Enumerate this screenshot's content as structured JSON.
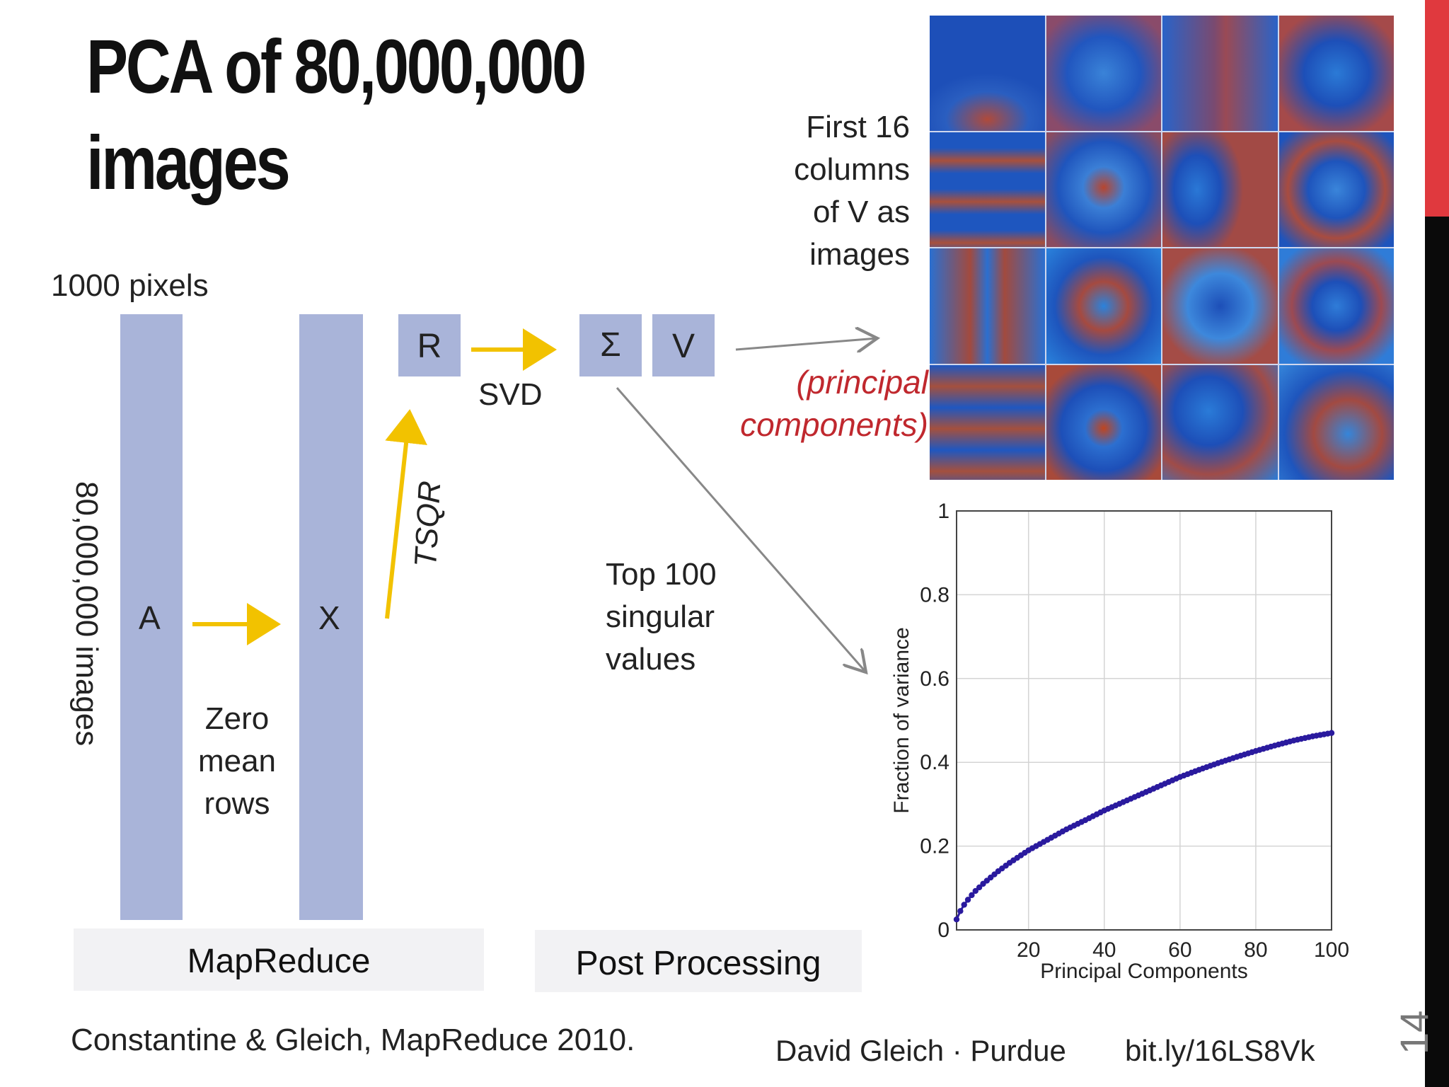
{
  "title": {
    "line1": "PCA of 80,000,000",
    "line2": "images"
  },
  "labels": {
    "pixels": "1000 pixels",
    "images_count": "80,000,000 images",
    "matrix_a": "A",
    "matrix_x": "X",
    "matrix_r": "R",
    "sigma": "Σ",
    "matrix_v": "V",
    "zero_mean_rows": [
      "Zero",
      "mean",
      "rows"
    ],
    "tsqr": "TSQR",
    "svd": "SVD",
    "top_singular": [
      "Top 100",
      "singular",
      "values"
    ],
    "first16": [
      "First 16",
      "columns",
      "of V as",
      "images"
    ],
    "principal_components": [
      "(principal",
      "components)"
    ]
  },
  "bands": {
    "mapreduce": "MapReduce",
    "post_processing": "Post Processing"
  },
  "footer": {
    "citation": "Constantine & Gleich, MapReduce 2010.",
    "author": "David Gleich · Purdue",
    "link": "bit.ly/16LS8Vk",
    "page": "14"
  },
  "colors": {
    "bar": "#a9b4d9",
    "arrow": "#f2c200",
    "accent": "#c0282e",
    "curve": "#2a1a9e"
  },
  "eigen_images": {
    "count": 16,
    "rows": 4,
    "cols": 4
  },
  "chart_data": {
    "type": "line",
    "title": "",
    "xlabel": "Principal Components",
    "ylabel": "Fraction of variance",
    "xlim": [
      1,
      100
    ],
    "ylim": [
      0,
      1
    ],
    "xticks": [
      20,
      40,
      60,
      80,
      100
    ],
    "yticks": [
      0,
      0.2,
      0.4,
      0.6,
      0.8,
      1
    ],
    "ytick_labels": [
      "0",
      "0.2",
      "0.4",
      "0.6",
      "0.8",
      "1"
    ],
    "grid": true,
    "series": [
      {
        "x": [
          1,
          2,
          3,
          4,
          5,
          6,
          8,
          10,
          12,
          15,
          20,
          25,
          30,
          35,
          40,
          45,
          50,
          55,
          60,
          65,
          70,
          75,
          80,
          85,
          90,
          95,
          100
        ],
        "y": [
          0.025,
          0.045,
          0.06,
          0.072,
          0.083,
          0.093,
          0.11,
          0.125,
          0.14,
          0.16,
          0.19,
          0.215,
          0.24,
          0.262,
          0.285,
          0.305,
          0.325,
          0.345,
          0.365,
          0.382,
          0.398,
          0.413,
          0.427,
          0.44,
          0.452,
          0.462,
          0.47
        ]
      }
    ]
  }
}
